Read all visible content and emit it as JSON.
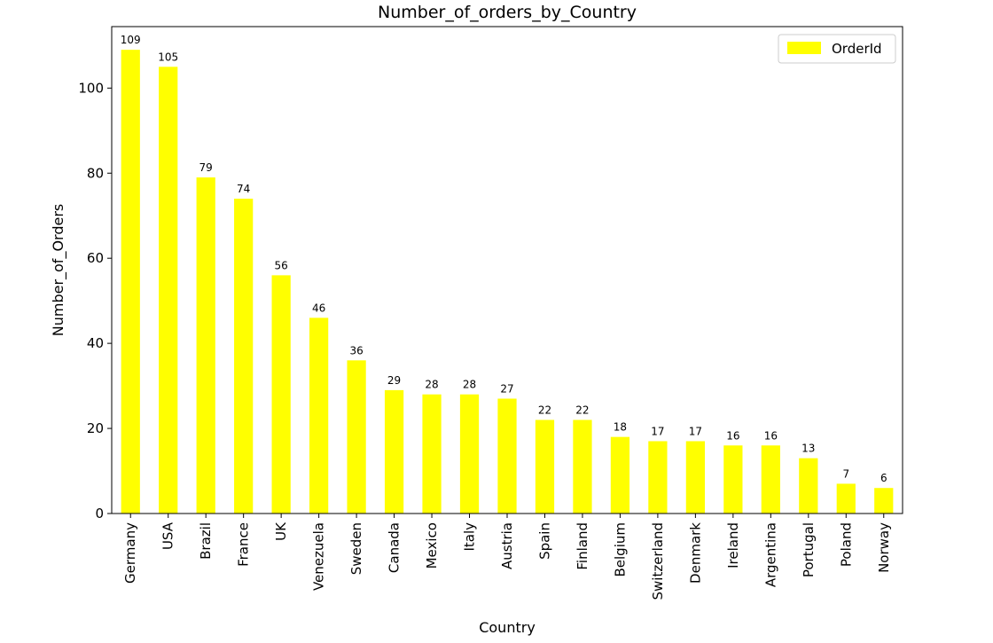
{
  "chart_data": {
    "type": "bar",
    "title": "Number_of_orders_by_Country",
    "xlabel": "Country",
    "ylabel": "Number_of_Orders",
    "categories": [
      "Germany",
      "USA",
      "Brazil",
      "France",
      "UK",
      "Venezuela",
      "Sweden",
      "Canada",
      "Mexico",
      "Italy",
      "Austria",
      "Spain",
      "Finland",
      "Belgium",
      "Switzerland",
      "Denmark",
      "Ireland",
      "Argentina",
      "Portugal",
      "Poland",
      "Norway"
    ],
    "series": [
      {
        "name": "OrderId",
        "values": [
          109,
          105,
          79,
          74,
          56,
          46,
          36,
          29,
          28,
          28,
          27,
          22,
          22,
          18,
          17,
          17,
          16,
          16,
          13,
          7,
          6
        ]
      }
    ],
    "ylim": [
      0,
      114.45
    ],
    "yticks": [
      0,
      20,
      40,
      60,
      80,
      100
    ],
    "grid": false,
    "legend_position": "top-right",
    "bar_color": "#ffff00",
    "show_data_labels": true
  }
}
